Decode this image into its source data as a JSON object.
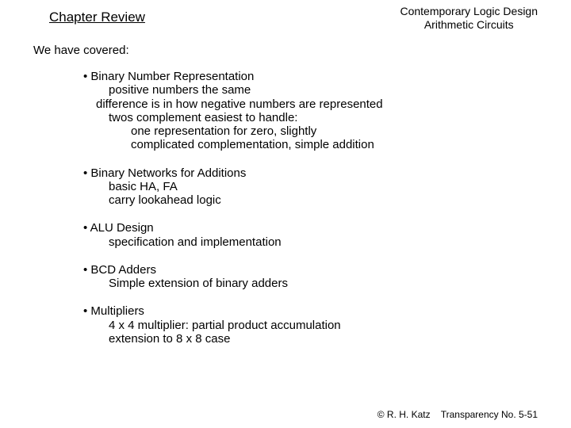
{
  "header": {
    "title": "Chapter Review",
    "course_line1": "Contemporary Logic Design",
    "course_line2": "Arithmetic Circuits"
  },
  "intro": "We have covered:",
  "topics": [
    {
      "head": "Binary Number Representation",
      "lines": [
        "positive numbers the same",
        "difference is in how negative numbers are represented",
        "twos complement easiest to handle:",
        "one representation for zero, slightly",
        "complicated complementation, simple addition"
      ],
      "indents": [
        "sub",
        "sub0",
        "sub",
        "sub2",
        "sub2"
      ]
    },
    {
      "head": "Binary Networks for Additions",
      "lines": [
        "basic HA, FA",
        "carry lookahead logic"
      ],
      "indents": [
        "sub",
        "sub"
      ]
    },
    {
      "head": "ALU Design",
      "lines": [
        "specification and implementation"
      ],
      "indents": [
        "sub"
      ]
    },
    {
      "head": "BCD Adders",
      "lines": [
        "Simple extension of binary adders"
      ],
      "indents": [
        "sub"
      ]
    },
    {
      "head": "Multipliers",
      "lines": [
        "4 x 4 multiplier: partial product accumulation",
        "extension to 8 x 8 case"
      ],
      "indents": [
        "sub",
        "sub"
      ]
    }
  ],
  "footer": {
    "copyright": "© R. H. Katz",
    "page": "Transparency No. 5-51"
  },
  "colors": {
    "bg": "#ffffff",
    "text": "#000000"
  }
}
